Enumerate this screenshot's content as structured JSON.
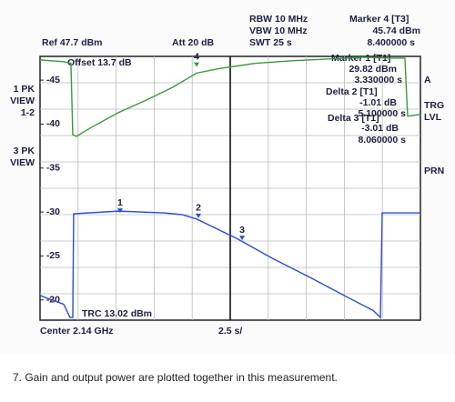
{
  "chart_data": {
    "type": "line",
    "xlim": [
      0,
      25
    ],
    "ylim": [
      -17.7,
      -47.7
    ],
    "yticks": [
      -45,
      -40,
      -35,
      -30,
      -25,
      -20
    ],
    "series": [
      {
        "color": "#3a9a3a",
        "x": [
          0,
          1.56,
          2.03,
          2.15,
          2.39,
          3.35,
          5.14,
          6.94,
          8.73,
          10.29,
          11.72,
          14.11,
          16.51,
          18.9,
          21.29,
          23.09,
          23.98,
          24.16,
          25
        ],
        "values": [
          -47.3,
          -47.1,
          -46.9,
          -38.8,
          -38.6,
          -39.6,
          -41.3,
          -42.7,
          -44.2,
          -45.8,
          -46.3,
          -46.9,
          -47.2,
          -47.4,
          -47.6,
          -47.5,
          -47.5,
          -40.9,
          -41.1
        ]
      },
      {
        "color": "#2a4fd0",
        "x": [
          0,
          1.56,
          1.97,
          2.15,
          2.21,
          5.14,
          8.13,
          9.33,
          10.29,
          12.92,
          15.31,
          17.7,
          20.1,
          21.89,
          22.37,
          22.49,
          25
        ],
        "values": [
          -20.5,
          -19.5,
          -18.0,
          -18.0,
          -29.8,
          -30.1,
          -29.9,
          -29.7,
          -29.2,
          -27.0,
          -24.7,
          -22.6,
          -20.4,
          -18.8,
          -18.0,
          -29.9,
          -29.9
        ]
      }
    ],
    "markers": [
      {
        "label": "1",
        "x": 5.26,
        "y": -30.1,
        "color": "#2a4fd0"
      },
      {
        "label": "2",
        "x": 10.41,
        "y": -29.5,
        "color": "#2a4fd0"
      },
      {
        "label": "3",
        "x": 13.28,
        "y": -27.0,
        "color": "#2a4fd0"
      },
      {
        "label": "4",
        "x": 10.29,
        "y": -46.7,
        "color": "#3a9a3a"
      }
    ]
  },
  "instrument": {
    "rbw": "RBW 10 MHz",
    "vbw": "VBW 10 MHz",
    "swt": "SWT 25 s",
    "marker4": "Marker 4 [T3]",
    "marker4_level": "45.74 dBm",
    "marker4_time": "8.400000 s",
    "ref": "Ref 47.7 dBm",
    "att": "Att 20 dB",
    "offset": "Offset 13.7 dB",
    "marker1": "Marker 1 [T1]",
    "marker1_level": "29.82 dBm",
    "marker1_time": "3.330000 s",
    "delta2": "Delta 2 [T1]",
    "delta2_level": "-1.01 dB",
    "delta2_time": "5.100000 s",
    "delta3": "Delta 3 [T1]",
    "delta3_level": "-3.01 dB",
    "delta3_time": "8.060000 s",
    "trc": "TRC 13.02 dBm",
    "center": "Center 2.14 GHz",
    "span": "2.5 s/",
    "left": [
      "1 PK",
      "VIEW",
      "1-2",
      "3 PK",
      "VIEW"
    ],
    "right": [
      "A",
      "TRG",
      "LVL",
      "PRN"
    ]
  },
  "caption": "7. Gain and output power are plotted together in this measurement."
}
